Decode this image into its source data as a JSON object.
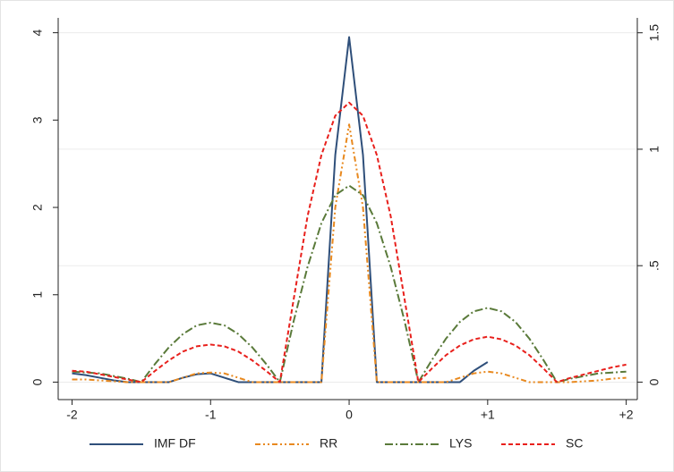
{
  "chart_data": {
    "type": "line",
    "x": [
      -2,
      -1.9,
      -1.8,
      -1.7,
      -1.6,
      -1.5,
      -1.4,
      -1.3,
      -1.2,
      -1.1,
      -1,
      -0.9,
      -0.8,
      -0.7,
      -0.6,
      -0.5,
      -0.4,
      -0.3,
      -0.2,
      -0.1,
      0,
      0.1,
      0.2,
      0.3,
      0.4,
      0.5,
      0.6,
      0.7,
      0.8,
      0.9,
      1,
      1.1,
      1.2,
      1.3,
      1.4,
      1.5,
      1.6,
      1.7,
      1.8,
      1.9,
      2
    ],
    "series": [
      {
        "name": "IMF DF",
        "color": "#2f4f7a",
        "dash": "none",
        "values": [
          0.1,
          0.08,
          0.05,
          0.02,
          0,
          0,
          0,
          0,
          0.05,
          0.09,
          0.1,
          0.05,
          0,
          0,
          0,
          0,
          0,
          0,
          0,
          2.6,
          3.95,
          2.6,
          0,
          0,
          0,
          0,
          0,
          0,
          0,
          0.13,
          0.23,
          null,
          null,
          null,
          null,
          null,
          null,
          null,
          null,
          null,
          null
        ]
      },
      {
        "name": "RR",
        "color": "#e8891f",
        "dash": "6,3,2,3,2,3",
        "values": [
          0.03,
          0.03,
          0.02,
          0.01,
          0,
          0,
          0,
          0,
          0.05,
          0.1,
          0.11,
          0.1,
          0.05,
          0,
          0,
          0,
          0,
          0,
          0,
          2.0,
          2.95,
          2.0,
          0,
          0,
          0,
          0,
          0,
          0,
          0.05,
          0.1,
          0.12,
          0.1,
          0.05,
          0,
          0,
          0,
          0,
          0.01,
          0.02,
          0.04,
          0.05
        ]
      },
      {
        "name": "LYS",
        "color": "#5a7a3a",
        "dash": "9,3,2,3",
        "values": [
          0.12,
          0.11,
          0.1,
          0.07,
          0.04,
          0,
          0.21,
          0.4,
          0.55,
          0.65,
          0.68,
          0.65,
          0.55,
          0.4,
          0.21,
          0,
          0.7,
          1.32,
          1.82,
          2.14,
          2.25,
          2.14,
          1.82,
          1.32,
          0.7,
          0,
          0.26,
          0.5,
          0.69,
          0.81,
          0.85,
          0.81,
          0.69,
          0.5,
          0.26,
          0,
          0.04,
          0.07,
          0.1,
          0.11,
          0.12
        ]
      },
      {
        "name": "SC",
        "color": "#e8201c",
        "dash": "5,3",
        "values": [
          0.13,
          0.12,
          0.09,
          0.06,
          0.03,
          0,
          0.13,
          0.25,
          0.35,
          0.41,
          0.43,
          0.41,
          0.35,
          0.25,
          0.13,
          0,
          0.95,
          1.9,
          2.6,
          3.05,
          3.2,
          3.05,
          2.6,
          1.9,
          0.95,
          0,
          0.16,
          0.31,
          0.42,
          0.49,
          0.52,
          0.49,
          0.42,
          0.31,
          0.16,
          0,
          0.05,
          0.09,
          0.13,
          0.17,
          0.2
        ]
      }
    ],
    "xlim": [
      -2.1,
      2.08
    ],
    "xticks": [
      -2,
      -1,
      0,
      {
        "value": 1,
        "label": "+1"
      },
      {
        "value": 2,
        "label": "+2"
      }
    ],
    "ylim": [
      -0.2,
      4.17
    ],
    "yticks": [
      0,
      1,
      2,
      3,
      4
    ],
    "y2lim": [
      -0.075,
      1.564
    ],
    "y2ticks": [
      0,
      {
        "value": 0.5,
        "label": ".5"
      },
      1,
      1.5
    ],
    "grid": true
  }
}
